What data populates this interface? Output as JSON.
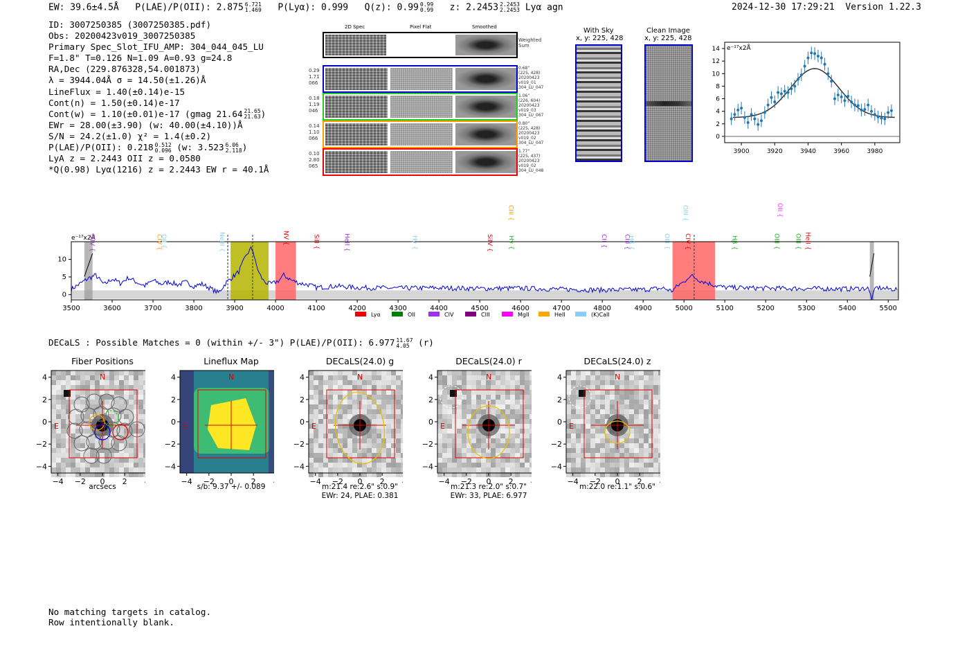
{
  "header": {
    "ew": "EW: 39.6±4.5Å",
    "plae_label": "P(LAE)/P(OII): 2.875",
    "plae_sup": "6.721",
    "plae_sub": "1.469",
    "plya": "P(Lyα): 0.999",
    "qz_label": "Q(z): 0.99",
    "qz_sup": "0.99",
    "qz_sub": "0.99",
    "z_label": "z: 2.2453",
    "z_sup": "2.2453",
    "z_sub": "2.2453",
    "z_tail": "Lyα  agn",
    "timestamp": "2024-12-30 17:29:21",
    "version": "Version 1.22.3"
  },
  "stats": {
    "id": "ID: 3007250385 (3007250385.pdf)",
    "obs": "Obs: 20200423v019_3007250385",
    "primary": "Primary Spec_Slot_IFU_AMP: 304_044_045_LU",
    "fwhm": "F=1.8\"  T=0.126  N=1.09  A=0.93  g=24.8",
    "radec": "RA,Dec (229.876328,54.001873)",
    "lambda": "λ = 3944.04Å  σ = 14.50(±1.26)Å",
    "lineflux": "LineFlux = 1.40(±0.14)e-15",
    "contn": "Cont(n) = 1.50(±0.14)e-17",
    "contw_label": "Cont(w) = 1.10(±0.01)e-17 (gmag 21.64",
    "contw_sup": "21.65",
    "contw_sub": "21.63",
    "contw_tail": ")",
    "ewr": "EWr = 28.00(±3.90) (w: 40.00(±4.10))Å",
    "sn": "S/N = 24.2(±1.0)  χ² = 1.4(±0.2)",
    "plae_label": "P(LAE)/P(OII): 0.218",
    "plae_sup": "0.512",
    "plae_sub": "0.096",
    "plae_mid": "(w: 3.523",
    "plae_w_sup": "6.06",
    "plae_w_sub": "2.118",
    "plae_tail": ")",
    "lya": "LyA z = 2.2443  OII z = 0.0580",
    "qline": "*Q(0.98) Lyα(1216) z = 2.2443  EW r = 40.1Å"
  },
  "cutouts": {
    "col_2d": "2D Spec",
    "col_flat": "Pixel Flat",
    "col_smooth": "Smoothed",
    "weighted": [
      "Weighted",
      "Sum"
    ],
    "fibers": [
      {
        "left": [
          "0.29",
          "1.71",
          "066"
        ],
        "right": [
          "0.68\"",
          "(225, 428)",
          "20200423",
          "v019_01",
          "304_LU_047"
        ],
        "color": "#0000cc"
      },
      {
        "left": [
          "0.18",
          "1.19",
          "046"
        ],
        "right": [
          "1.06\"",
          "(226, 604)",
          "20200423",
          "v019_03",
          "304_LU_067"
        ],
        "color": "#22cc22"
      },
      {
        "left": [
          "0.14",
          "1.10",
          "066"
        ],
        "right": [
          "0.80\"",
          "(225, 428)",
          "20200423",
          "v019_02",
          "304_LU_047"
        ],
        "color": "#ff9900"
      },
      {
        "left": [
          "0.10",
          "2.80",
          "065"
        ],
        "right": [
          "1.77\"",
          "(225, 437)",
          "20200423",
          "v019_02",
          "304_LU_048"
        ],
        "color": "#ee0000"
      }
    ]
  },
  "sky": {
    "with_sky_title": "With Sky",
    "with_sky_coord": "x, y: 225, 428",
    "clean_title": "Clean Image",
    "clean_coord": "x, y: 225, 428"
  },
  "chart_data": [
    {
      "type": "scatter",
      "title": "",
      "units_label": "e⁻¹⁷x2Å",
      "xlim": [
        3890,
        3995
      ],
      "ylim": [
        -1,
        15
      ],
      "xticks": [
        3900,
        3920,
        3940,
        3960,
        3980
      ],
      "yticks": [
        0,
        2,
        4,
        6,
        8,
        10,
        12,
        14
      ],
      "x": [
        3894,
        3896,
        3898,
        3900,
        3902,
        3904,
        3906,
        3908,
        3910,
        3912,
        3914,
        3916,
        3918,
        3920,
        3922,
        3924,
        3926,
        3928,
        3930,
        3932,
        3934,
        3936,
        3938,
        3940,
        3942,
        3944,
        3946,
        3948,
        3950,
        3952,
        3954,
        3956,
        3958,
        3960,
        3962,
        3964,
        3966,
        3968,
        3970,
        3972,
        3974,
        3976,
        3978,
        3980,
        3982,
        3984,
        3986,
        3988,
        3990
      ],
      "y": [
        2.8,
        3.5,
        4.2,
        4.5,
        3.0,
        2.2,
        3.5,
        2.8,
        1.9,
        2.5,
        3.8,
        5.0,
        6.2,
        5.5,
        7.0,
        6.8,
        7.2,
        7.0,
        7.6,
        8.0,
        9.1,
        9.8,
        11.2,
        12.5,
        13.3,
        13.2,
        12.8,
        12.5,
        11.5,
        10.0,
        8.8,
        6.0,
        6.6,
        6.3,
        5.7,
        6.4,
        5.5,
        5.0,
        4.9,
        4.2,
        4.3,
        5.0,
        4.0,
        3.5,
        3.1,
        2.9,
        2.8,
        3.8,
        4.1
      ],
      "err": 1.0,
      "model": "gaussian fit: center 3944, sigma 14.5, peak 10.8, continuum 3.0"
    },
    {
      "type": "line",
      "title": "",
      "units_label": "e⁻¹⁷x2Å",
      "xlim": [
        3500,
        5525
      ],
      "ylim": [
        -1.5,
        15
      ],
      "xticks": [
        3500,
        3600,
        3700,
        3800,
        3900,
        4000,
        4100,
        4200,
        4300,
        4400,
        4500,
        4600,
        4700,
        4800,
        4900,
        5000,
        5100,
        5200,
        5300,
        5400,
        5500
      ],
      "yticks": [
        0,
        5,
        10
      ],
      "series": [
        {
          "name": "spectrum",
          "color": "#0000dd",
          "x": [
            3500,
            3520,
            3540,
            3560,
            3580,
            3600,
            3620,
            3640,
            3660,
            3680,
            3700,
            3720,
            3740,
            3760,
            3780,
            3800,
            3820,
            3840,
            3860,
            3880,
            3900,
            3910,
            3920,
            3930,
            3940,
            3945,
            3950,
            3960,
            3970,
            3980,
            3990,
            4000,
            4010,
            4020,
            4040,
            4060,
            4080,
            4100,
            4150,
            4200,
            4300,
            4400,
            4500,
            4600,
            4700,
            4800,
            4900,
            4950,
            4970,
            4990,
            5000,
            5010,
            5020,
            5040,
            5060,
            5080,
            5100,
            5200,
            5300,
            5400,
            5450,
            5460,
            5470,
            5500,
            5525
          ],
          "y": [
            1.5,
            3.0,
            4.5,
            5.5,
            2.8,
            4.5,
            3.2,
            4.8,
            3.5,
            2.5,
            4.0,
            3.0,
            3.6,
            2.8,
            3.5,
            2.4,
            3.0,
            1.8,
            0.5,
            3.5,
            5.5,
            6.5,
            9.0,
            11.5,
            13.0,
            12.5,
            9.5,
            6.0,
            4.0,
            3.2,
            3.0,
            3.5,
            4.2,
            5.5,
            4.0,
            3.2,
            2.8,
            2.0,
            2.4,
            2.0,
            1.8,
            1.9,
            1.7,
            1.8,
            1.5,
            1.3,
            1.4,
            1.8,
            1.0,
            3.0,
            3.5,
            5.0,
            5.2,
            4.0,
            3.2,
            2.5,
            2.0,
            1.8,
            1.7,
            1.6,
            1.8,
            -1.0,
            2.0,
            1.6,
            1.5
          ]
        }
      ],
      "regions": [
        {
          "x0": 3532,
          "x1": 3552,
          "color": "#999999",
          "hatch": true
        },
        {
          "x0": 3890,
          "x1": 3983,
          "color": "#b5b500",
          "hatch": false
        },
        {
          "x0": 4000,
          "x1": 4050,
          "color": "#ff6666",
          "hatch": false
        },
        {
          "x0": 4972,
          "x1": 5076,
          "color": "#ff6666",
          "hatch": false
        },
        {
          "x0": 5455,
          "x1": 5465,
          "color": "#999999",
          "hatch": true
        }
      ],
      "vlines": [
        3883,
        3944,
        5025
      ],
      "line_markers": [
        {
          "label": "SiIV",
          "x": 3552,
          "color": "#9933cc",
          "y": 338
        },
        {
          "label": "CIV",
          "x": 3716,
          "color": "#ff9900",
          "y": 338
        },
        {
          "label": "OII",
          "x": 3727,
          "color": "#87ceeb",
          "y": 338
        },
        {
          "label": "NeIII",
          "x": 3869,
          "color": "#87ceeb",
          "y": 335
        },
        {
          "label": "NV",
          "x": 4026,
          "color": "#ee0000",
          "y": 333
        },
        {
          "label": "SiII",
          "x": 4101,
          "color": "#ee0000",
          "y": 338
        },
        {
          "label": "HeII",
          "x": 4175,
          "color": "#9933cc",
          "y": 337
        },
        {
          "label": "Hγ",
          "x": 4341,
          "color": "#87ceeb",
          "y": 340
        },
        {
          "label": "SiIV",
          "x": 4525,
          "color": "#ee0000",
          "y": 338
        },
        {
          "label": "CIII",
          "x": 4577,
          "color": "#ff9900",
          "y": 296
        },
        {
          "label": "Hγ",
          "x": 4578,
          "color": "#22aa22",
          "y": 340
        },
        {
          "label": "CII",
          "x": 4805,
          "color": "#9933cc",
          "y": 338
        },
        {
          "label": "CIII",
          "x": 4862,
          "color": "#9933cc",
          "y": 338
        },
        {
          "label": "Hβ",
          "x": 4872,
          "color": "#87ceeb",
          "y": 340
        },
        {
          "label": "OIII",
          "x": 4959,
          "color": "#87ceeb",
          "y": 337
        },
        {
          "label": "OIII",
          "x": 5004,
          "color": "#87ceeb",
          "y": 296
        },
        {
          "label": "CIV",
          "x": 5010,
          "color": "#ee0000",
          "y": 337
        },
        {
          "label": "Hβ",
          "x": 5124,
          "color": "#22aa22",
          "y": 340
        },
        {
          "label": "OIII",
          "x": 5228,
          "color": "#22aa22",
          "y": 337
        },
        {
          "label": "OII",
          "x": 5235,
          "color": "#ff33ff",
          "y": 293
        },
        {
          "label": "OIII",
          "x": 5280,
          "color": "#22aa22",
          "y": 337
        },
        {
          "label": "HeII",
          "x": 5304,
          "color": "#ee0000",
          "y": 335
        }
      ],
      "legend": [
        {
          "label": "Lyα",
          "color": "#ee0000"
        },
        {
          "label": "OII",
          "color": "#008000"
        },
        {
          "label": "CIV",
          "color": "#9933ee"
        },
        {
          "label": "CIII",
          "color": "#800080"
        },
        {
          "label": "MgII",
          "color": "#ff00ff"
        },
        {
          "label": "HeII",
          "color": "#ffa500"
        },
        {
          "label": "(K)CaII",
          "color": "#87cefa"
        }
      ]
    }
  ],
  "decals": {
    "summary": "DECaLS : Possible Matches = 0 (within +/- 3\")  P(LAE)/P(OII): 6.977",
    "summary_sup": "11.67",
    "summary_sub": "4.05",
    "summary_tail": "(r)",
    "panels": [
      {
        "title": "Fiber Positions",
        "captions": [
          "arcsecs"
        ],
        "kind": "fibers"
      },
      {
        "title": "Lineflux Map",
        "captions": [
          "s/b: 9.37 +/- 0.089"
        ],
        "kind": "flux"
      },
      {
        "title": "DECaLS(24.0) g",
        "captions": [
          "m:21.4  re:2.6\"  s:0.9\"",
          "EWr: 24, PLAE: 0.381"
        ],
        "kind": "g"
      },
      {
        "title": "DECaLS(24.0) r",
        "captions": [
          "m:21.3  re:2.0\"  s:0.7\"",
          "EWr: 33, PLAE: 6.977"
        ],
        "kind": "r"
      },
      {
        "title": "DECaLS(24.0) z",
        "captions": [
          "m:22.0  re:1.1\"  s:0.6\""
        ],
        "kind": "z"
      }
    ],
    "ticks": [
      "−4",
      "−2",
      "0",
      "2",
      "4"
    ],
    "north": "N",
    "east": "E"
  },
  "footer": {
    "line1": "No matching targets in catalog.",
    "line2": "Row intentionally blank."
  }
}
